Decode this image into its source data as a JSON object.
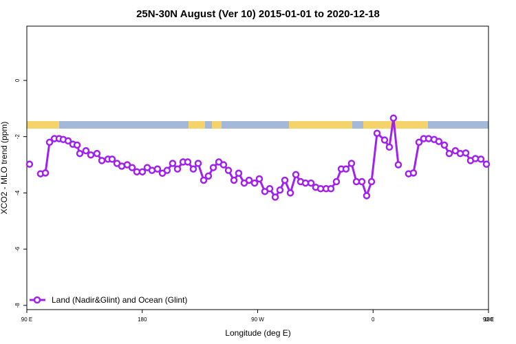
{
  "chart_data": {
    "type": "line",
    "title": "25N-30N August (Ver 10)   2015-01-01 to 2020-12-18",
    "x_label": "Longitude (deg E)",
    "y_label": "XCO2 - MLO trend (ppm)",
    "x": [
      92.1,
      96.4,
      100.7,
      104.5,
      107.7,
      111.5,
      115.2,
      118.4,
      122.2,
      125.9,
      129.2,
      131.3,
      136.1,
      139.9,
      144.7,
      148.5,
      153.3,
      156.5,
      160.3,
      164.0,
      168.3,
      172.1,
      175.8,
      180.1,
      183.9,
      187.6,
      191.9,
      195.7,
      199.4,
      203.7,
      207.5,
      211.8,
      215.5,
      219.8,
      223.6,
      227.9,
      231.6,
      235.4,
      239.7,
      243.4,
      247.2,
      251.5,
      255.2,
      259.5,
      263.3,
      267.6,
      271.3,
      275.6,
      279.4,
      283.7,
      287.4,
      291.2,
      295.5,
      299.8,
      303.5,
      307.3,
      311.6,
      315.3,
      319.1,
      323.4,
      327.1,
      331.4,
      335.2,
      338.9,
      343.2,
      347.0,
      351.3,
      355.0,
      358.8,
      363.1,
      369.0,
      372.7,
      375.9,
      379.7,
      384.0,
      387.7,
      391.5,
      395.8,
      399.5,
      403.3,
      407.6,
      411.3,
      415.6,
      419.4,
      424.2,
      428.0,
      432.3,
      436.0,
      439.8,
      444.1,
      448.4
    ],
    "series": [
      {
        "name": "Land (Nadir&Glint) and Ocean (Glint)",
        "color": "#a020f0",
        "values": [
          -2.98,
          null,
          -3.32,
          -3.29,
          -2.2,
          -2.07,
          -2.07,
          -2.1,
          -2.15,
          -2.27,
          -2.3,
          -2.6,
          -2.5,
          -2.65,
          -2.6,
          -2.85,
          -2.8,
          -2.8,
          -2.95,
          -3.05,
          -3.0,
          -3.1,
          -3.25,
          -3.25,
          -3.1,
          -3.2,
          -3.15,
          -3.3,
          -3.2,
          -2.95,
          -3.15,
          -2.9,
          -2.9,
          -3.15,
          -2.95,
          -3.55,
          -3.4,
          -3.1,
          -2.9,
          -3.0,
          -3.2,
          -3.55,
          -3.3,
          -3.65,
          -3.55,
          -3.65,
          -3.5,
          -3.95,
          -3.85,
          -4.15,
          -3.9,
          -3.55,
          -4.0,
          -3.35,
          -3.6,
          -3.65,
          -3.65,
          -3.8,
          -3.85,
          -3.85,
          -3.85,
          -3.6,
          -3.15,
          -3.15,
          -2.95,
          -3.6,
          -3.6,
          -4.1,
          -3.6,
          -1.88,
          -2.12,
          -2.37,
          -1.34,
          -3.0,
          null,
          -3.32,
          -3.29,
          -2.2,
          -2.07,
          -2.07,
          -2.1,
          -2.17,
          -2.3,
          -2.6,
          -2.5,
          -2.6,
          -2.58,
          -2.85,
          -2.78,
          -2.8,
          -2.98
        ]
      }
    ],
    "xlim": [
      90,
      450
    ],
    "xticks": [
      {
        "value": 90,
        "label": "90 E"
      },
      180,
      {
        "value": 270,
        "label": "90 W"
      },
      {
        "value": 360,
        "label": "0"
      },
      {
        "value": 450,
        "label": "90 E"
      },
      {
        "value": 540,
        "label": "180"
      }
    ],
    "ylim": [
      -8.15,
      1.93
    ],
    "yticks": [
      0,
      -2,
      -4,
      -6,
      -8
    ],
    "legend": "bottom-left"
  }
}
